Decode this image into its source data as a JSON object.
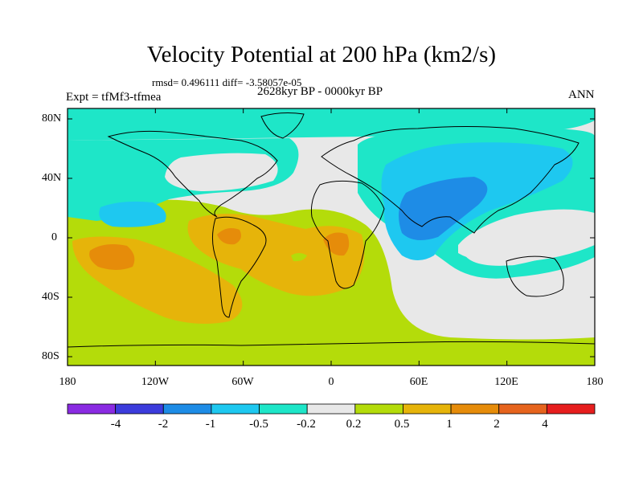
{
  "title": "Velocity Potential at 200 hPa (km2/s)",
  "stats": "rmsd= 0.496111 diff= -3.58057e-05",
  "period": "2628kyr BP - 0000kyr BP",
  "experiment": "Expt = tfMf3-tfmea",
  "season": "ANN",
  "lat_labels": [
    "80N",
    "40N",
    "0",
    "40S",
    "80S"
  ],
  "lon_labels": [
    "180",
    "120W",
    "60W",
    "0",
    "60E",
    "120E",
    "180"
  ],
  "colorbar": {
    "colors": [
      "#8a2be2",
      "#3c3cdc",
      "#1e8ce6",
      "#1ec8f0",
      "#1ee6c8",
      "#e8e8e8",
      "#b4dc0a",
      "#e6b40a",
      "#e68c0a",
      "#e6641e",
      "#e61e1e"
    ],
    "labels": [
      "-4",
      "-2",
      "-1",
      "-0.5",
      "-0.2",
      "0.2",
      "0.5",
      "1",
      "2",
      "4"
    ]
  },
  "palette": {
    "teal": "#1ee6c8",
    "cyan": "#1ec8f0",
    "blue": "#1e8ce6",
    "white": "#e8e8e8",
    "lime": "#b4dc0a",
    "gold": "#e6b40a",
    "orange": "#e68c0a"
  }
}
